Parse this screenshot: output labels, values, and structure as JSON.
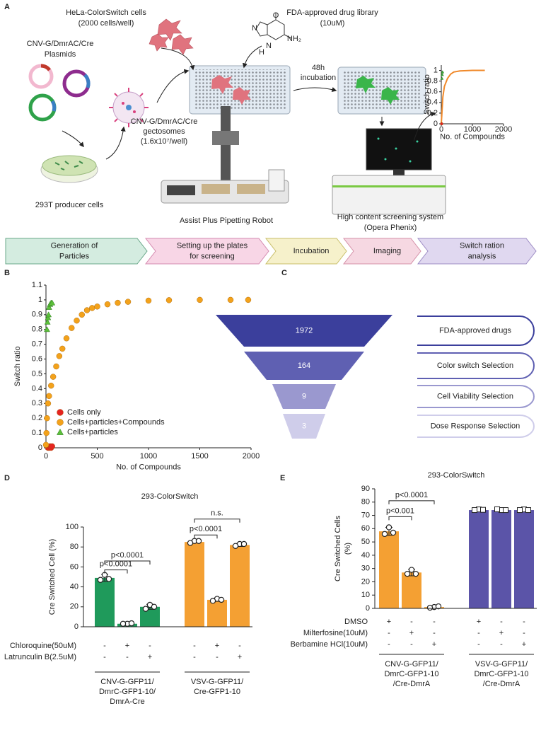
{
  "panel_labels": [
    "A",
    "B",
    "C",
    "D",
    "E"
  ],
  "panel_a": {
    "hela": [
      "HeLa-ColorSwitch cells",
      "(2000 cells/well)"
    ],
    "library": [
      "FDA-approved drug library",
      "(10uM)"
    ],
    "molecule": [
      "O",
      "N",
      "NH₂",
      "N",
      "H"
    ],
    "plasmids": [
      "CNV-G/DmrAC/Cre",
      "Plasmids"
    ],
    "incubation": [
      "48h",
      "incubation"
    ],
    "gectosomes": [
      "CNV-G/DmrAC/Cre",
      "gectosomes",
      "(1.6x10⁷/well)"
    ],
    "producer": "293T producer cells",
    "robot": "Assist Plus Pipetting Robot",
    "screening": [
      "High content screening system",
      "(Opera Phenix)"
    ],
    "workflow": [
      [
        "Generation of",
        "Particles"
      ],
      [
        "Setting up the plates",
        "for screening"
      ],
      [
        "Incubation"
      ],
      [
        "Imaging"
      ],
      [
        "Switch ration",
        "analysis"
      ]
    ]
  },
  "panel_c": {
    "funnel": [
      {
        "count": 1972,
        "label": "FDA-approved drugs",
        "color": "#3b3f9c"
      },
      {
        "count": 164,
        "label": "Color switch Selection",
        "color": "#5f60b2"
      },
      {
        "count": 9,
        "label": "Cell Viability Selection",
        "color": "#9a98cf"
      },
      {
        "count": 3,
        "label": "Dose Response Selection",
        "color": "#cfcdea"
      }
    ]
  },
  "chart_data": [
    {
      "type": "scatter",
      "xlabel": "No. of Compounds",
      "ylabel": "Switch ratio",
      "xlim": [
        0,
        2000
      ],
      "xticks": [
        0,
        1000,
        2000
      ],
      "ylim": [
        0,
        1.1
      ],
      "yticks": [
        0,
        0.2,
        0.4,
        0.6,
        0.8,
        1
      ],
      "series": [
        {
          "style": "line",
          "color": "#f0892a",
          "x": [
            0,
            50,
            100,
            200,
            300,
            400,
            600,
            1000,
            1400
          ],
          "values": [
            0,
            0.5,
            0.7,
            0.85,
            0.93,
            0.97,
            0.99,
            1,
            1
          ]
        },
        {
          "style": "triangle",
          "color": "#3aa83a",
          "x": [
            20,
            30,
            40
          ],
          "values": [
            0.85,
            0.92,
            0.97
          ]
        },
        {
          "style": "circle",
          "color": "#e02020",
          "x": [
            10
          ],
          "values": [
            0
          ]
        }
      ]
    },
    {
      "type": "scatter",
      "xlabel": "No. of Compounds",
      "ylabel": "Switch ratio",
      "xlim": [
        0,
        2000
      ],
      "xticks": [
        0,
        500,
        1000,
        1500,
        2000
      ],
      "ylim": [
        0,
        1.1
      ],
      "yticks": [
        0,
        0.1,
        0.2,
        0.3,
        0.4,
        0.5,
        0.6,
        0.7,
        0.8,
        0.9,
        1,
        1.1
      ],
      "legend": "lower left",
      "series": [
        {
          "name": "Cells only",
          "style": "circle",
          "color": "#e52420",
          "x": [
            20,
            30,
            40,
            50,
            60
          ],
          "values": [
            0,
            0,
            0.01,
            0,
            0.01
          ]
        },
        {
          "name": "Cells+particles+Compounds",
          "style": "circle",
          "color": "#f3a21b",
          "x": [
            0,
            5,
            10,
            20,
            30,
            50,
            70,
            100,
            130,
            160,
            200,
            250,
            300,
            350,
            400,
            450,
            500,
            600,
            700,
            800,
            1000,
            1200,
            1500,
            1800,
            1972
          ],
          "values": [
            0.02,
            0.1,
            0.2,
            0.3,
            0.35,
            0.42,
            0.48,
            0.55,
            0.62,
            0.67,
            0.74,
            0.81,
            0.86,
            0.9,
            0.93,
            0.945,
            0.955,
            0.97,
            0.98,
            0.987,
            0.995,
            0.998,
            1,
            1,
            1
          ]
        },
        {
          "name": "Cells+particles",
          "style": "triangle",
          "color": "#5cbf3a",
          "x": [
            10,
            15,
            20,
            25,
            30,
            40,
            50,
            60
          ],
          "values": [
            0.8,
            0.85,
            0.88,
            0.9,
            0.95,
            0.97,
            0.98,
            0.98
          ]
        }
      ]
    },
    {
      "type": "bar",
      "title": "293-ColorSwitch",
      "ylabel": [
        "Cre Switched Cell (%)"
      ],
      "ylim": [
        0,
        100
      ],
      "yticks": [
        0,
        20,
        40,
        60,
        80,
        100
      ],
      "groups": [
        {
          "label": [
            "CNV-G-GFP11/",
            "DmrC-GFP1-10/",
            "DmrA-Cre"
          ],
          "color": "#1f9a5b",
          "marker": "circle",
          "values": [
            49,
            3,
            20
          ],
          "errors": [
            3.5,
            0.5,
            2.5
          ],
          "points": [
            [
              52,
              47,
              48
            ],
            [
              3,
              3,
              3.5
            ],
            [
              22,
              18,
              20
            ]
          ]
        },
        {
          "label": [
            "VSV-G-GFP11/",
            "Cre-GFP1-10"
          ],
          "color": "#f4a033",
          "marker": "circle",
          "values": [
            85,
            27,
            82
          ],
          "errors": [
            1,
            1.5,
            1.5
          ],
          "points": [
            [
              86,
              84,
              86
            ],
            [
              28,
              26,
              27
            ],
            [
              83,
              81,
              83
            ]
          ]
        }
      ],
      "conditions": [
        {
          "name": "Chloroquine(50uM)",
          "signs": [
            "-",
            "+",
            "-",
            "-",
            "+",
            "-"
          ]
        },
        {
          "name": "Latrunculin B(2.5uM)",
          "signs": [
            "-",
            "-",
            "+",
            "-",
            "-",
            "+"
          ]
        }
      ],
      "annotations": [
        "p<0.0001",
        "p<0.0001",
        "p<0.0001",
        "n.s."
      ]
    },
    {
      "type": "bar",
      "title": "293-ColorSwitch",
      "ylabel": [
        "Cre Switched Cells",
        "(%)"
      ],
      "ylim": [
        0,
        90
      ],
      "yticks": [
        0,
        10,
        20,
        30,
        40,
        50,
        60,
        70,
        80,
        90
      ],
      "groups": [
        {
          "label": [
            "CNV-G-GFP11/",
            "DmrC-GFP1-10",
            "/Cre-DmrA"
          ],
          "color": "#f4a033",
          "marker": "circle",
          "values": [
            58,
            27,
            1
          ],
          "errors": [
            3,
            2.5,
            0.8
          ],
          "points": [
            [
              61,
              56,
              57
            ],
            [
              29,
              26,
              26
            ],
            [
              1,
              0.5,
              1.5
            ]
          ]
        },
        {
          "label": [
            "VSV-G-GFP11/",
            "DmrC-GFP1-10",
            "/Cre-DmrA"
          ],
          "color": "#5b54a8",
          "marker": "square",
          "values": [
            74,
            74,
            74
          ],
          "errors": [
            0.5,
            0.5,
            0.5
          ],
          "points": [
            [
              74.5,
              74,
              74.2
            ],
            [
              74,
              74.6,
              74
            ],
            [
              74.5,
              74,
              74
            ]
          ]
        }
      ],
      "conditions": [
        {
          "name": "DMSO",
          "signs": [
            "+",
            "-",
            "-",
            "+",
            "-",
            "-"
          ]
        },
        {
          "name": "Milterfosine(10uM)",
          "signs": [
            "-",
            "+",
            "-",
            "-",
            "+",
            "-"
          ]
        },
        {
          "name": "Berbamine HCl(10uM)",
          "signs": [
            "-",
            "-",
            "+",
            "-",
            "-",
            "+"
          ]
        }
      ],
      "annotations": [
        "p<0.0001",
        "p<0.001"
      ]
    }
  ]
}
